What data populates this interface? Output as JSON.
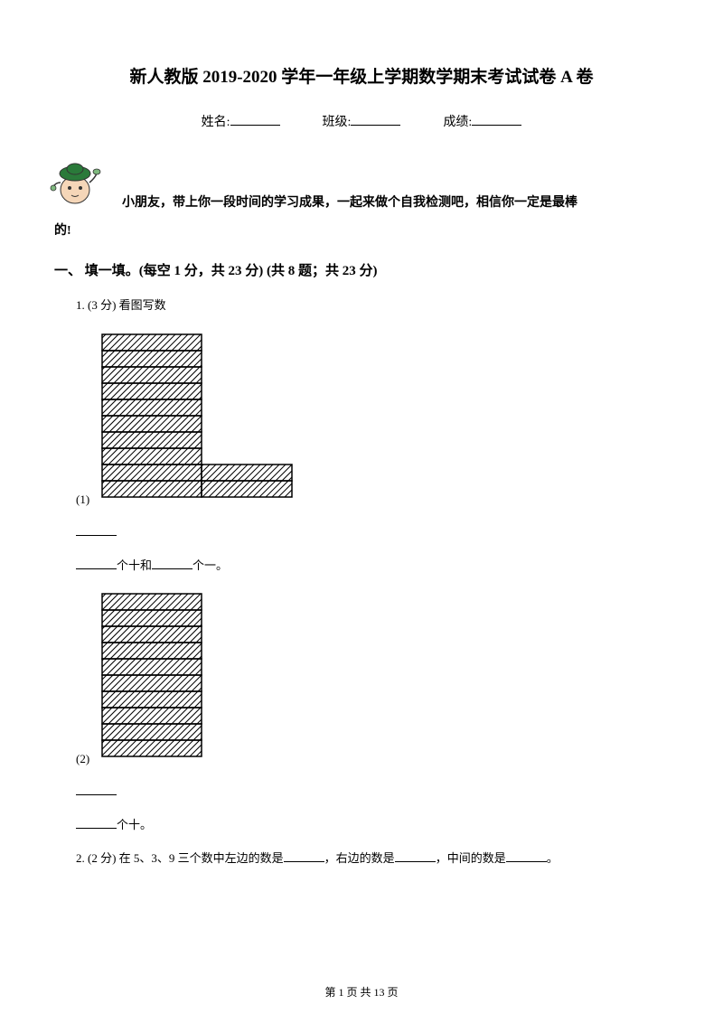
{
  "title": "新人教版 2019-2020 学年一年级上学期数学期末考试试卷 A 卷",
  "info": {
    "name_label": "姓名:",
    "class_label": "班级:",
    "score_label": "成绩:"
  },
  "intro": {
    "line1": "小朋友，带上你一段时间的学习成果，一起来做个自我检测吧，相信你一定是最棒",
    "line2": "的!"
  },
  "section1": {
    "header": "一、 填一填。(每空 1 分，共 23 分)  (共 8 题；共 23 分)"
  },
  "q1": {
    "num": "1.  (3 分) 看图写数",
    "sub1_label": "(1)",
    "sub1_text_a": "个十和",
    "sub1_text_b": "个一。",
    "sub2_label": "(2)",
    "sub2_text": "个十。"
  },
  "q2": {
    "text_a": "2.  (2 分) 在 5、3、9 三个数中左边的数是",
    "text_b": "，右边的数是",
    "text_c": "，中间的数是",
    "text_d": "。"
  },
  "footer": {
    "text": "第 1 页 共 13 页"
  },
  "figure1": {
    "tall_rows": 10,
    "short_rows": 2,
    "brick_width": 110,
    "brick_height": 18,
    "short_width": 100,
    "stroke": "#000000",
    "fill": "#ffffff",
    "hatch_spacing": 7
  },
  "figure2": {
    "rows": 10,
    "brick_width": 110,
    "brick_height": 18,
    "stroke": "#000000",
    "fill": "#ffffff",
    "hatch_spacing": 7
  },
  "cartoon": {
    "cap_color": "#2a7a3a",
    "skin_color": "#f5d6b8",
    "outline": "#333333"
  }
}
